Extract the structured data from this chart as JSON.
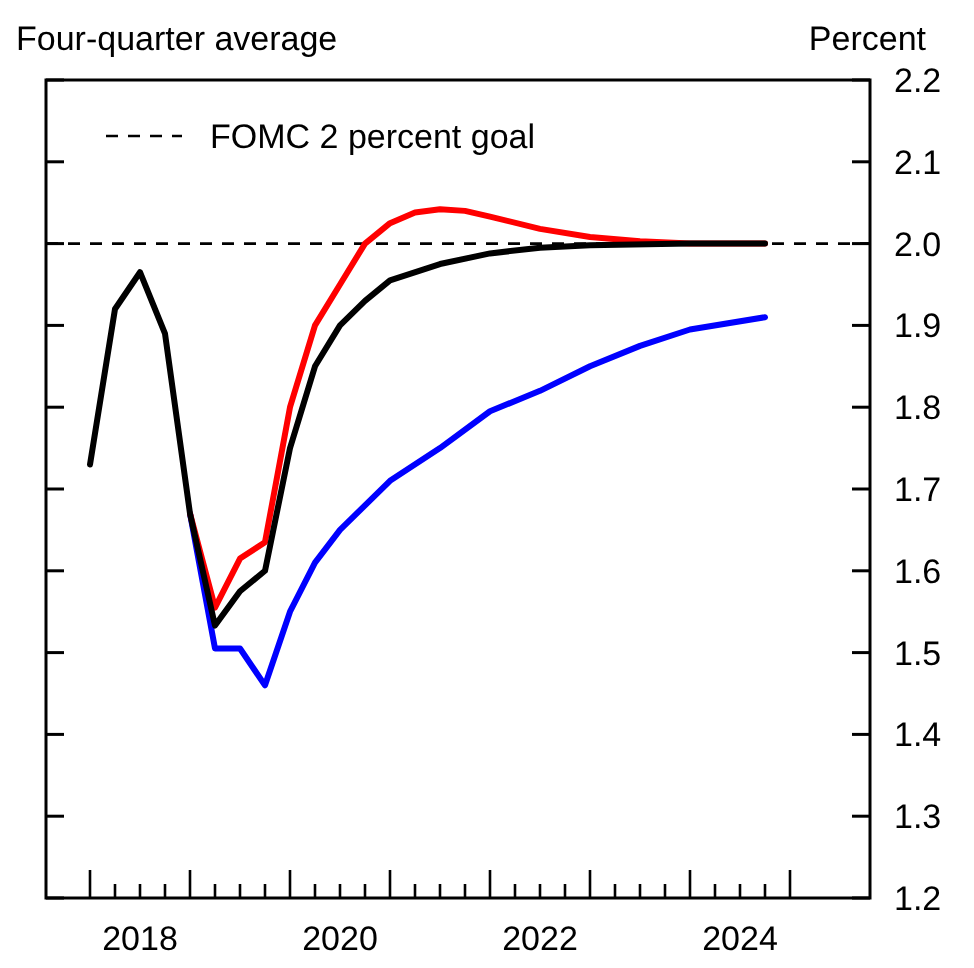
{
  "chart_data": {
    "type": "line",
    "title": "Four-quarter average",
    "ylabel": "Percent",
    "xlim": [
      2017.56,
      2025.8
    ],
    "ylim": [
      1.2,
      2.2
    ],
    "yticks": [
      1.2,
      1.3,
      1.4,
      1.5,
      1.6,
      1.7,
      1.8,
      1.9,
      {
        "value": 2.0,
        "label": "2.0"
      },
      2.1,
      2.2
    ],
    "xticks": [
      {
        "value": 2018,
        "label": null
      },
      {
        "value": 2018.25,
        "label": null
      },
      {
        "value": 2018.5,
        "label": null
      },
      {
        "value": 2018.75,
        "label": null
      },
      {
        "value": 2019,
        "label": null
      },
      {
        "value": 2019.25,
        "label": null
      },
      {
        "value": 2019.5,
        "label": null
      },
      {
        "value": 2019.75,
        "label": null
      },
      {
        "value": 2020,
        "label": null
      },
      {
        "value": 2020.25,
        "label": null
      },
      {
        "value": 2020.5,
        "label": null
      },
      {
        "value": 2020.75,
        "label": null
      },
      {
        "value": 2021,
        "label": null
      },
      {
        "value": 2021.25,
        "label": null
      },
      {
        "value": 2021.5,
        "label": null
      },
      {
        "value": 2021.75,
        "label": null
      },
      {
        "value": 2022,
        "label": null
      },
      {
        "value": 2022.25,
        "label": null
      },
      {
        "value": 2022.5,
        "label": null
      },
      {
        "value": 2022.75,
        "label": null
      },
      {
        "value": 2023,
        "label": null
      },
      {
        "value": 2023.25,
        "label": null
      },
      {
        "value": 2023.5,
        "label": null
      },
      {
        "value": 2023.75,
        "label": null
      },
      {
        "value": 2024,
        "label": null
      },
      {
        "value": 2024.25,
        "label": null
      },
      {
        "value": 2024.5,
        "label": null
      },
      {
        "value": 2024.75,
        "label": null
      },
      {
        "value": 2025,
        "label": null
      },
      {
        "value": 2018.5,
        "label": "2018"
      },
      {
        "value": 2020.5,
        "label": "2020"
      },
      {
        "value": 2022.5,
        "label": "2022"
      },
      {
        "value": 2024.5,
        "label": "2024"
      }
    ],
    "ref_lines": [
      {
        "axis": "y",
        "value": 2.0,
        "label": "FOMC 2 percent goal",
        "color": "#000000",
        "line_style": "dashed"
      }
    ],
    "legend": "top left",
    "grid": false,
    "line_style": "solid",
    "series": [
      {
        "color": "#0000ff",
        "x": [
          2019,
          2019.25,
          2019.5,
          2019.75,
          2020,
          2020.25,
          2020.5,
          2020.75,
          2021,
          2021.5,
          2022,
          2022.5,
          2023,
          2023.5,
          2024,
          2024.75
        ],
        "values": [
          1.67,
          1.505,
          1.505,
          1.46,
          1.55,
          1.61,
          1.65,
          1.68,
          1.71,
          1.75,
          1.795,
          1.82,
          1.85,
          1.875,
          1.895,
          1.91
        ]
      },
      {
        "color": "#ff0000",
        "x": [
          2019,
          2019.25,
          2019.5,
          2019.75,
          2020,
          2020.25,
          2020.5,
          2020.75,
          2021,
          2021.25,
          2021.5,
          2021.75,
          2022,
          2022.5,
          2023,
          2023.5,
          2024,
          2024.75
        ],
        "values": [
          1.67,
          1.555,
          1.615,
          1.635,
          1.8,
          1.9,
          1.95,
          2.0,
          2.025,
          2.038,
          2.042,
          2.04,
          2.033,
          2.018,
          2.008,
          2.003,
          2.0,
          2.0
        ]
      },
      {
        "color": "#000000",
        "x": [
          2018,
          2018.25,
          2018.5,
          2018.75,
          2019,
          2019.25,
          2019.5,
          2019.75,
          2020,
          2020.25,
          2020.5,
          2020.75,
          2021,
          2021.5,
          2022,
          2022.5,
          2023,
          2024,
          2024.75
        ],
        "values": [
          1.73,
          1.92,
          1.965,
          1.89,
          1.67,
          1.533,
          1.575,
          1.6,
          1.75,
          1.85,
          1.9,
          1.93,
          1.955,
          1.975,
          1.988,
          1.995,
          1.998,
          2.0,
          2.0
        ]
      }
    ]
  }
}
